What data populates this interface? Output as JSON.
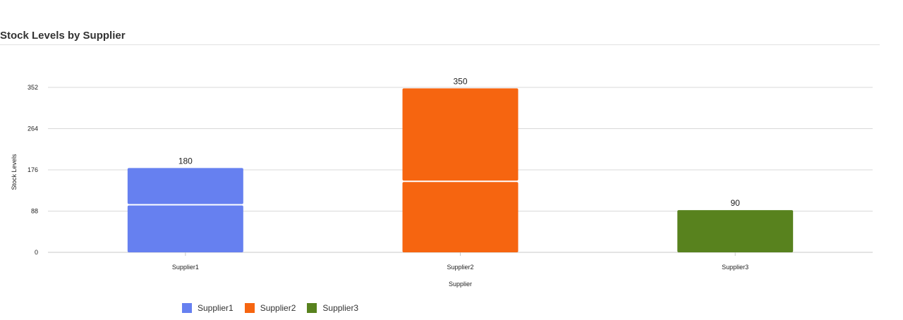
{
  "chart_data": {
    "type": "bar",
    "title": "Stock Levels by Supplier",
    "xlabel": "Supplier",
    "ylabel": "Stock Levels",
    "ylim": [
      0,
      352
    ],
    "yticks": [
      0,
      88,
      176,
      264,
      352
    ],
    "categories": [
      "Supplier1",
      "Supplier2",
      "Supplier3"
    ],
    "series": [
      {
        "name": "Supplier1",
        "color": "#6680f0",
        "segments": [
          100,
          80
        ],
        "total": 180
      },
      {
        "name": "Supplier2",
        "color": "#f66510",
        "segments": [
          150,
          200
        ],
        "total": 350
      },
      {
        "name": "Supplier3",
        "color": "#58821e",
        "segments": [
          90
        ],
        "total": 90
      }
    ],
    "data_labels": [
      "180",
      "350",
      "90"
    ],
    "grid": true,
    "legend_position": "bottom-left"
  }
}
